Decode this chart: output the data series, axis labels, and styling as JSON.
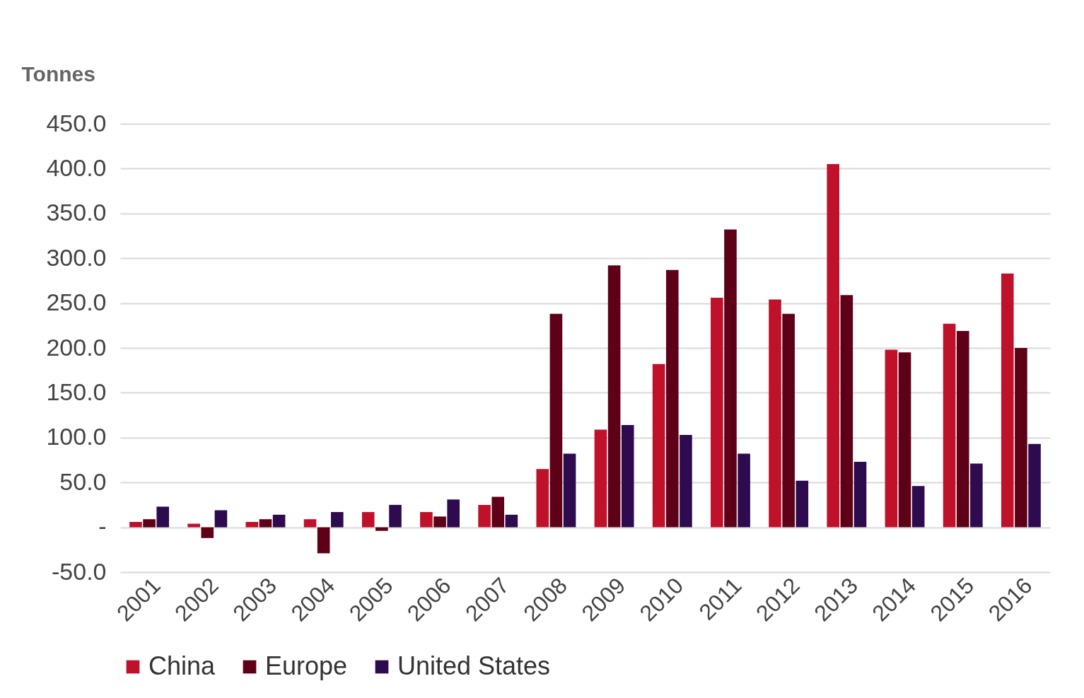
{
  "chart_data": {
    "type": "bar",
    "ylabel": "Tonnes",
    "categories": [
      "2001",
      "2002",
      "2003",
      "2004",
      "2005",
      "2006",
      "2007",
      "2008",
      "2009",
      "2010",
      "2011",
      "2012",
      "2013",
      "2014",
      "2015",
      "2016"
    ],
    "series": [
      {
        "name": "China",
        "color": "#c0112b",
        "values": [
          6,
          4,
          6,
          9,
          17,
          17,
          25,
          65,
          109,
          182,
          256,
          254,
          405,
          198,
          227,
          283
        ]
      },
      {
        "name": "Europe",
        "color": "#5e0018",
        "values": [
          9,
          -12,
          9,
          -29,
          -4,
          12,
          34,
          238,
          292,
          287,
          332,
          238,
          259,
          195,
          219,
          200
        ]
      },
      {
        "name": "United States",
        "color": "#2e0a4e",
        "values": [
          23,
          19,
          14,
          17,
          25,
          31,
          14,
          82,
          114,
          103,
          82,
          52,
          73,
          46,
          71,
          93
        ]
      }
    ],
    "ylim": [
      -50,
      450
    ],
    "yticks": [
      {
        "value": -50,
        "label": "-50.0"
      },
      {
        "value": 0,
        "label": "-"
      },
      {
        "value": 50,
        "label": "50.0"
      },
      {
        "value": 100,
        "label": "100.0"
      },
      {
        "value": 150,
        "label": "150.0"
      },
      {
        "value": 200,
        "label": "200.0"
      },
      {
        "value": 250,
        "label": "250.0"
      },
      {
        "value": 300,
        "label": "300.0"
      },
      {
        "value": 350,
        "label": "350.0"
      },
      {
        "value": 400,
        "label": "400.0"
      },
      {
        "value": 450,
        "label": "450.0"
      }
    ],
    "grid": "y",
    "legend": "bottom"
  }
}
